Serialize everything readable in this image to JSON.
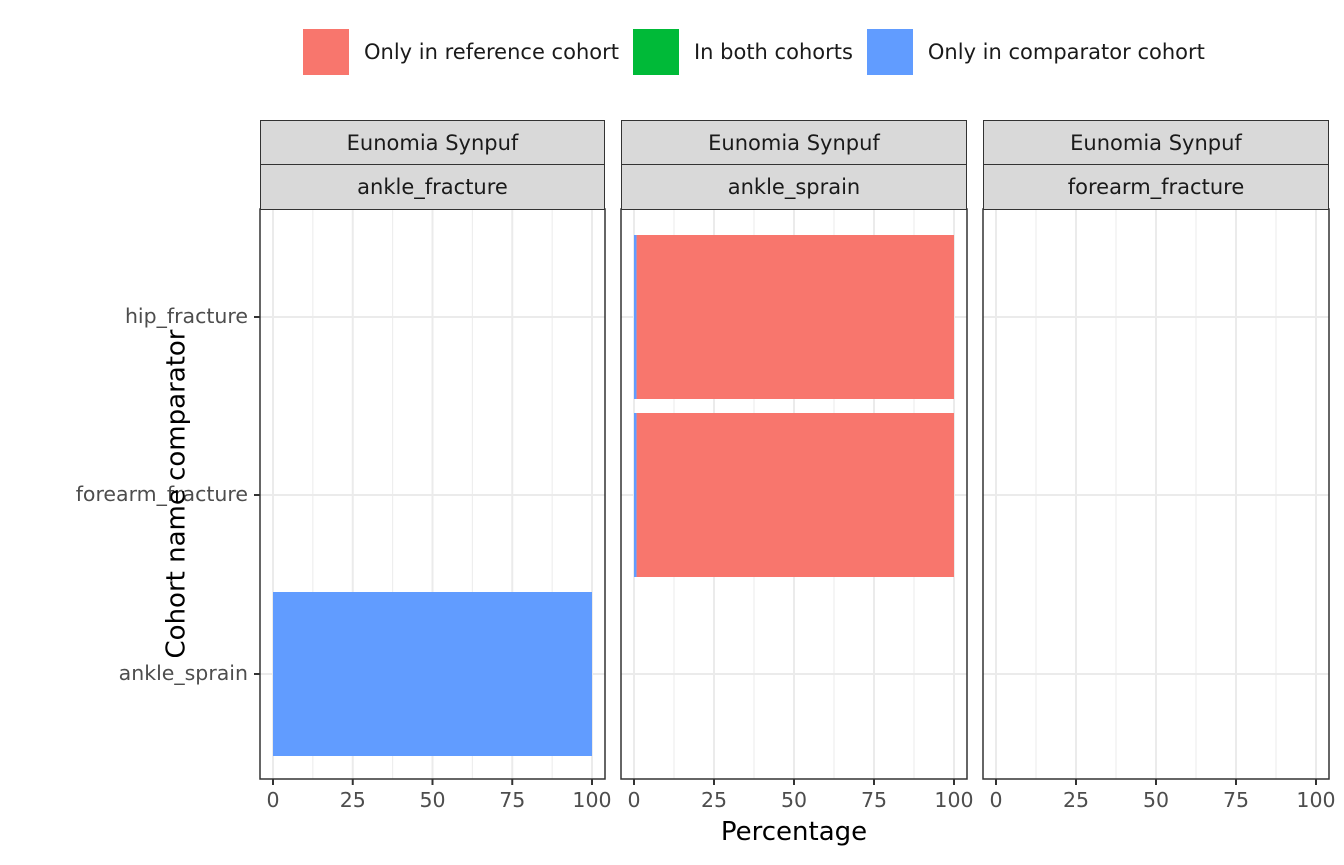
{
  "chart_data": {
    "type": "bar",
    "orientation": "horizontal",
    "stacked": true,
    "xlabel": "Percentage",
    "ylabel": "Cohort name comparator",
    "xlim": [
      0,
      100
    ],
    "x_ticks": [
      "0",
      "25",
      "50",
      "75",
      "100"
    ],
    "categories": [
      "hip_fracture",
      "forearm_fracture",
      "ankle_sprain"
    ],
    "grid": true,
    "legend_position": "top",
    "legend": [
      {
        "name": "Only in reference cohort",
        "color": "#F8766D"
      },
      {
        "name": "In both cohorts",
        "color": "#00BA38"
      },
      {
        "name": "Only in comparator cohort",
        "color": "#619CFF"
      }
    ],
    "panels": [
      {
        "strip_top": "Eunomia Synpuf",
        "strip_bottom": "ankle_fracture",
        "bars": [
          {
            "category": "ankle_sprain",
            "only_reference": 0,
            "both": 0,
            "only_comparator": 100
          }
        ]
      },
      {
        "strip_top": "Eunomia Synpuf",
        "strip_bottom": "ankle_sprain",
        "bars": [
          {
            "category": "hip_fracture",
            "only_reference": 99.2,
            "both": 0,
            "only_comparator": 0.8
          },
          {
            "category": "forearm_fracture",
            "only_reference": 99.2,
            "both": 0,
            "only_comparator": 0.8
          }
        ]
      },
      {
        "strip_top": "Eunomia Synpuf",
        "strip_bottom": "forearm_fracture",
        "bars": []
      }
    ]
  }
}
